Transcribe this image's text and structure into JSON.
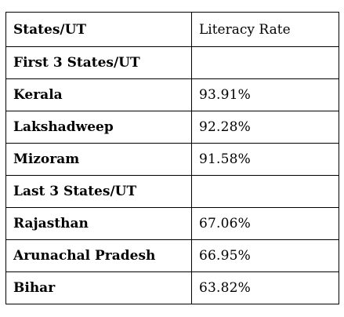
{
  "table": {
    "header": {
      "col1": "States/UT",
      "col2": "Literacy Rate"
    },
    "sections": [
      {
        "title": "First 3 States/UT",
        "rows": [
          {
            "state": "Kerala",
            "rate": "93.91%"
          },
          {
            "state": "Lakshadweep",
            "rate": "92.28%"
          },
          {
            "state": "Mizoram",
            "rate": "91.58%"
          }
        ]
      },
      {
        "title": "Last 3 States/UT",
        "rows": [
          {
            "state": "Rajasthan",
            "rate": "67.06%"
          },
          {
            "state": "Arunachal Pradesh",
            "rate": "66.95%"
          },
          {
            "state": "Bihar",
            "rate": "63.82%"
          }
        ]
      }
    ]
  }
}
